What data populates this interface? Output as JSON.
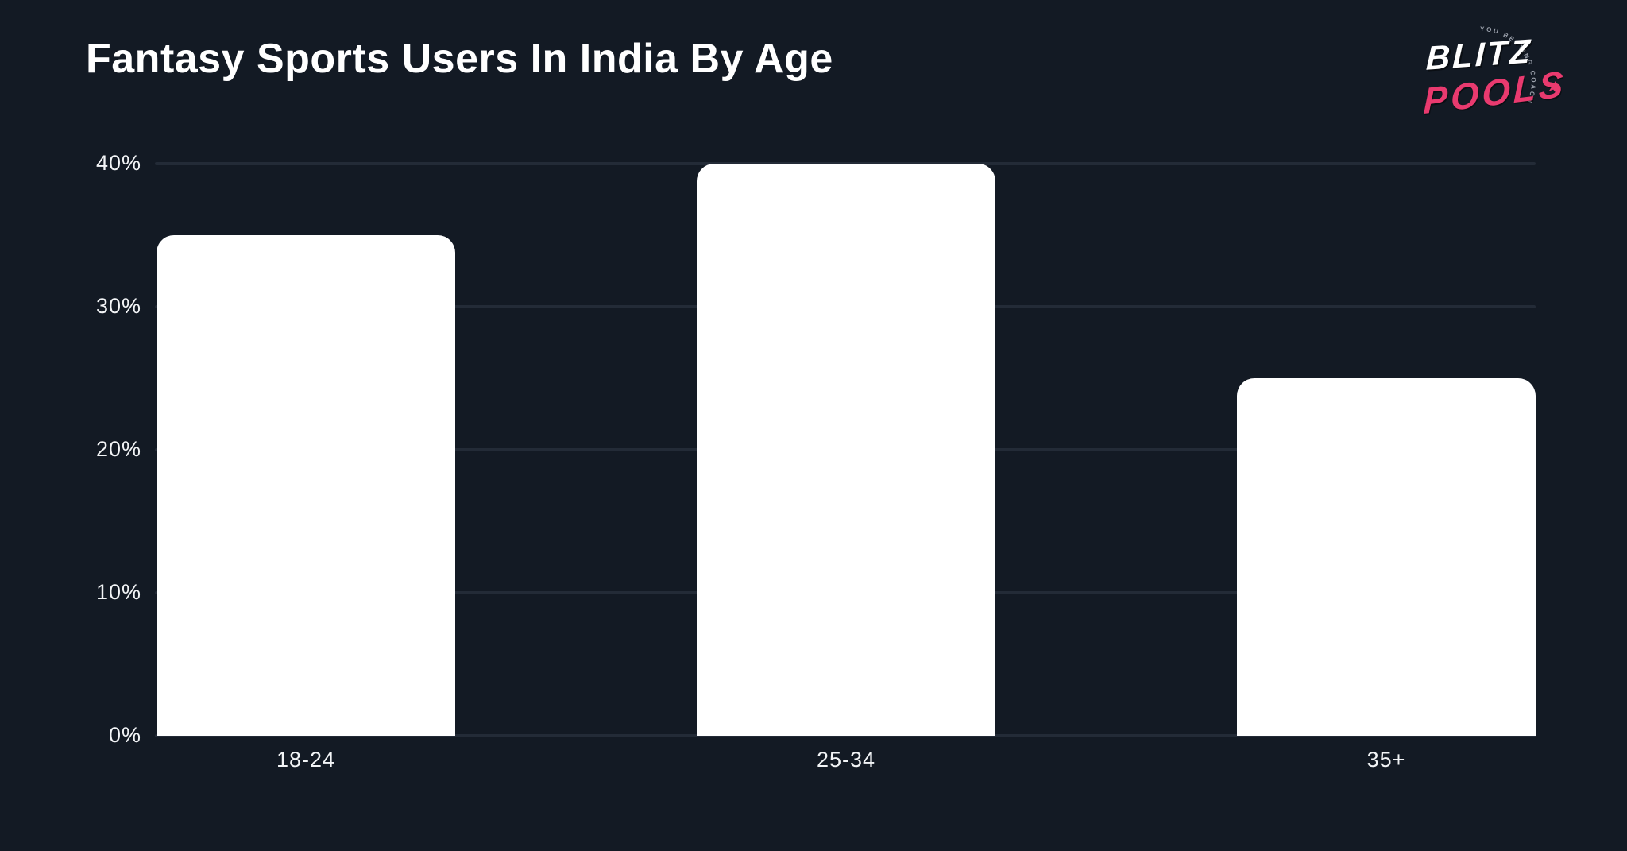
{
  "header": {
    "title": "Fantasy Sports Users In India By Age"
  },
  "logo": {
    "name": "Blitzpools",
    "line1": "BLITZ",
    "line2": "POOLS",
    "star": "★",
    "tagline_arc": "YOU BETTING COACH"
  },
  "colors": {
    "background": "#131a24",
    "gridline": "#232b37",
    "bar": "#ffffff",
    "text": "#f2f4f6",
    "logo_pink": "#e93a6f",
    "tagline_gray": "#9aa0ab"
  },
  "chart_data": {
    "type": "bar",
    "title": "Fantasy Sports Users In India By Age",
    "categories": [
      "18-24",
      "25-34",
      "35+"
    ],
    "values": [
      35,
      40,
      25
    ],
    "unit": "%",
    "xlabel": "",
    "ylabel": "",
    "ylim": [
      0,
      40
    ],
    "yticks": [
      0,
      10,
      20,
      30,
      40
    ],
    "ytick_labels": [
      "0%",
      "10%",
      "20%",
      "30%",
      "40%"
    ],
    "grid": true,
    "legend": false,
    "bar_corner_radius": 22
  }
}
